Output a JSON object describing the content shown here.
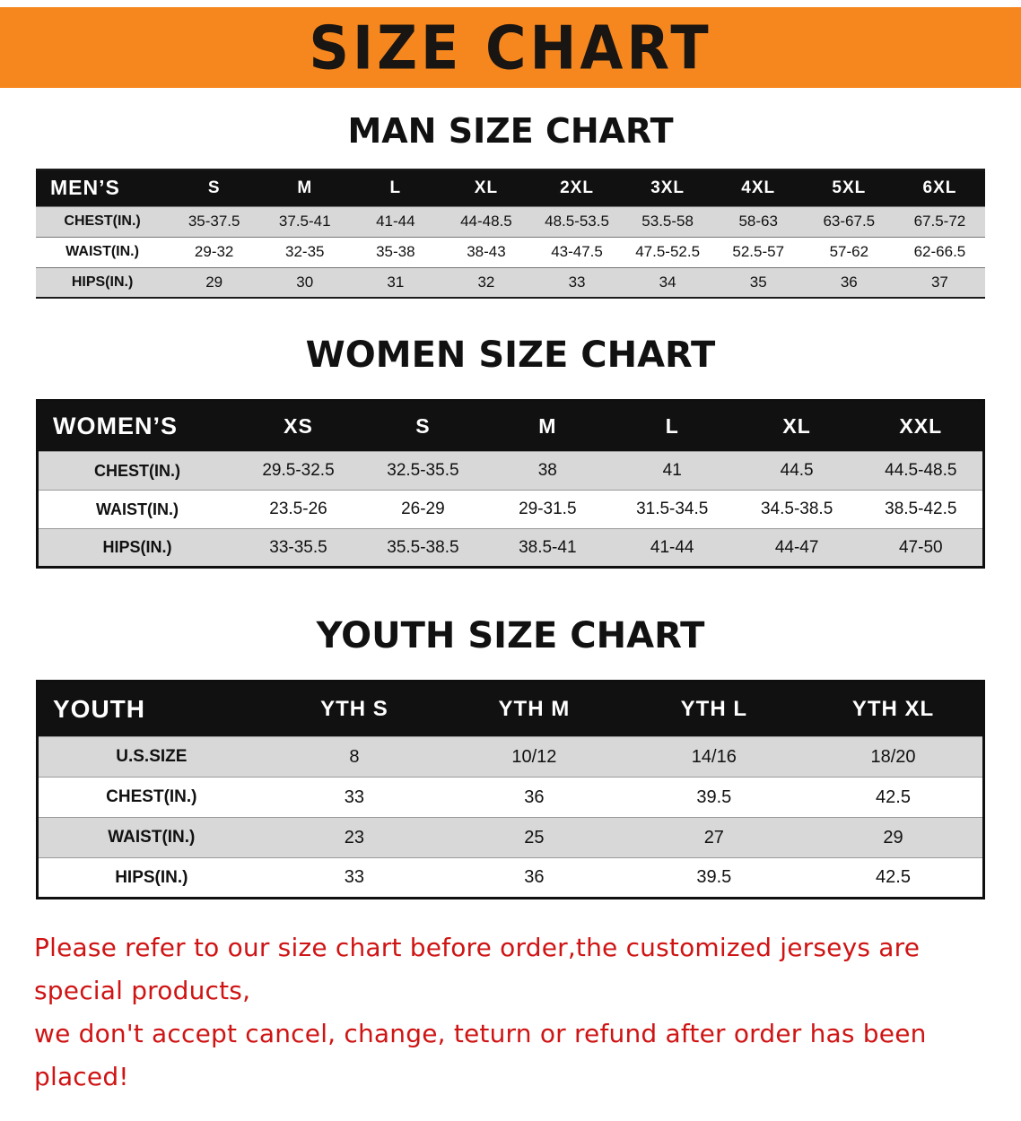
{
  "banner": {
    "title": "SIZE CHART"
  },
  "colors": {
    "banner_bg": "#f6871f",
    "table_header_bg": "#111111",
    "row_alt_bg": "#d8d8d8",
    "row_bg": "#ffffff",
    "disclaimer_text": "#cf1414",
    "heading_text": "#111111"
  },
  "sections": [
    {
      "id": "men",
      "heading": "MAN SIZE CHART",
      "table": {
        "header": [
          "MEN’S",
          "S",
          "M",
          "L",
          "XL",
          "2XL",
          "3XL",
          "4XL",
          "5XL",
          "6XL"
        ],
        "rows": [
          [
            "CHEST(IN.)",
            "35-37.5",
            "37.5-41",
            "41-44",
            "44-48.5",
            "48.5-53.5",
            "53.5-58",
            "58-63",
            "63-67.5",
            "67.5-72"
          ],
          [
            "WAIST(IN.)",
            "29-32",
            "32-35",
            "35-38",
            "38-43",
            "43-47.5",
            "47.5-52.5",
            "52.5-57",
            "57-62",
            "62-66.5"
          ],
          [
            "HIPS(IN.)",
            "29",
            "30",
            "31",
            "32",
            "33",
            "34",
            "35",
            "36",
            "37"
          ]
        ]
      }
    },
    {
      "id": "women",
      "heading": "WOMEN SIZE CHART",
      "table": {
        "header": [
          "WOMEN’S",
          "XS",
          "S",
          "M",
          "L",
          "XL",
          "XXL"
        ],
        "rows": [
          [
            "CHEST(IN.)",
            "29.5-32.5",
            "32.5-35.5",
            "38",
            "41",
            "44.5",
            "44.5-48.5"
          ],
          [
            "WAIST(IN.)",
            "23.5-26",
            "26-29",
            "29-31.5",
            "31.5-34.5",
            "34.5-38.5",
            "38.5-42.5"
          ],
          [
            "HIPS(IN.)",
            "33-35.5",
            "35.5-38.5",
            "38.5-41",
            "41-44",
            "44-47",
            "47-50"
          ]
        ]
      }
    },
    {
      "id": "youth",
      "heading": "YOUTH SIZE CHART",
      "table": {
        "header": [
          "YOUTH",
          "YTH S",
          "YTH M",
          "YTH L",
          "YTH XL"
        ],
        "rows": [
          [
            "U.S.SIZE",
            "8",
            "10/12",
            "14/16",
            "18/20"
          ],
          [
            "CHEST(IN.)",
            "33",
            "36",
            "39.5",
            "42.5"
          ],
          [
            "WAIST(IN.)",
            "23",
            "25",
            "27",
            "29"
          ],
          [
            "HIPS(IN.)",
            "33",
            "36",
            "39.5",
            "42.5"
          ]
        ]
      }
    }
  ],
  "disclaimer": {
    "lines": [
      "Please refer to our size chart before order,the customized jerseys are special products,",
      "we don't accept cancel, change, teturn or refund after order has been placed!"
    ]
  }
}
